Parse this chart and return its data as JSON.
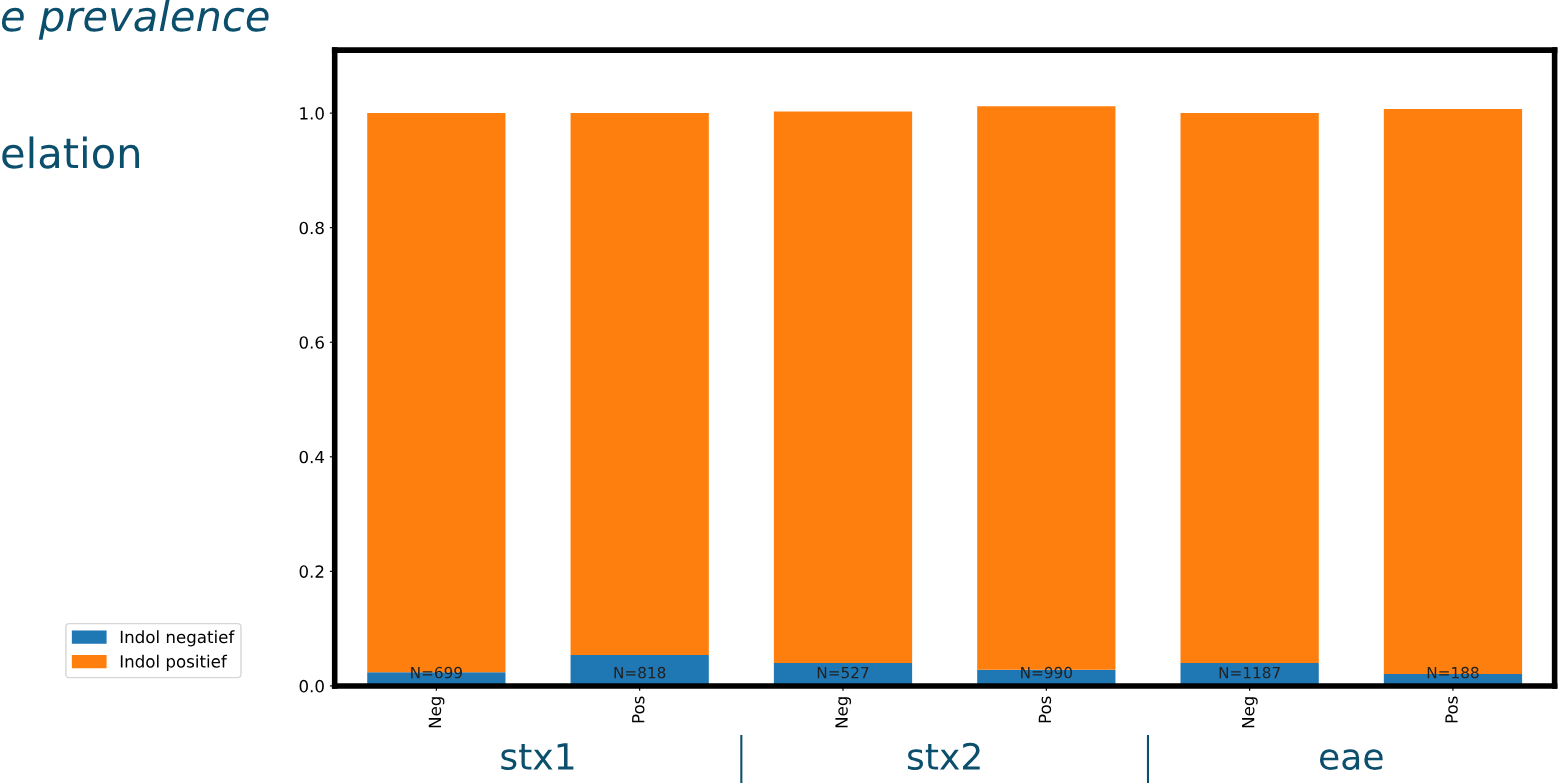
{
  "chart_data": {
    "type": "bar",
    "stacked": true,
    "categories": [
      "Neg",
      "Pos",
      "Neg",
      "Pos",
      "Neg",
      "Pos"
    ],
    "series": [
      {
        "name": "Indol negatief",
        "color": "#1f77b4",
        "values": [
          0.024,
          0.054,
          0.04,
          0.028,
          0.04,
          0.021
        ]
      },
      {
        "name": "Indol positief",
        "color": "#ff7f0e",
        "values": [
          0.976,
          0.946,
          0.963,
          0.984,
          0.96,
          0.986
        ]
      }
    ],
    "ylim": [
      0,
      1.11
    ],
    "yticks": [
      {
        "value": 0,
        "label": "0.0"
      },
      {
        "value": 0.2,
        "label": "0.2"
      },
      {
        "value": 0.4,
        "label": "0.4"
      },
      {
        "value": 0.6,
        "label": "0.6"
      },
      {
        "value": 0.8,
        "label": "0.8"
      },
      {
        "value": 1.0,
        "label": "1.0"
      }
    ],
    "grid": false,
    "legend": "left",
    "annotations": [
      "e prevalence",
      "elation",
      "N=699",
      "N=818",
      "N=527",
      "N=990",
      "N=1187",
      "N=188",
      "stx1",
      "stx2",
      "eae"
    ]
  }
}
